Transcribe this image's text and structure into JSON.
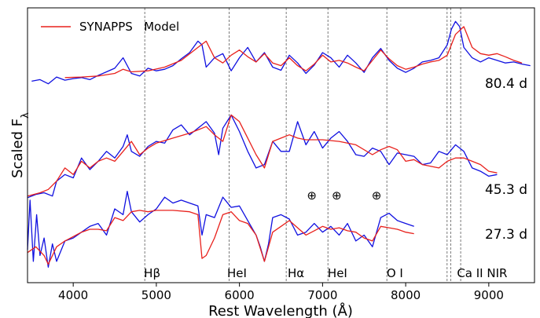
{
  "chart_data": {
    "type": "line",
    "xlabel": "Rest Wavelength (Å)",
    "ylabel": "Scaled F",
    "ylabel_subscript": "λ",
    "xlim": [
      3450,
      9550
    ],
    "ylim": [
      0,
      1
    ],
    "x_ticks": [
      4000,
      5000,
      6000,
      7000,
      8000,
      9000
    ],
    "legend": {
      "position": "top-left",
      "entries": [
        {
          "name": "SYNAPPS   Model",
          "color": "#e8211c"
        }
      ]
    },
    "series_colors": {
      "observed": "#1010e0",
      "model": "#e8211c"
    },
    "line_markers": [
      {
        "label": "Hβ",
        "x": 4861,
        "label_x": 4950
      },
      {
        "label": "HeI",
        "x": 5876,
        "label_x": 5970
      },
      {
        "label": "Hα",
        "x": 6563,
        "label_x": 6680
      },
      {
        "label": "HeI",
        "x": 7065,
        "label_x": 7180
      },
      {
        "label": "O I",
        "x": 7774,
        "label_x": 7870
      },
      {
        "label": "",
        "x": 8498
      },
      {
        "label": "",
        "x": 8542
      },
      {
        "label": "Ca II NIR",
        "x": 8662,
        "label_x": 8920
      }
    ],
    "telluric_markers": [
      {
        "symbol": "⊕",
        "x": 6870
      },
      {
        "symbol": "⊕",
        "x": 7170
      },
      {
        "symbol": "⊕",
        "x": 7650
      }
    ],
    "epochs": [
      {
        "label": "80.4 d",
        "observed": {
          "x": [
            3500,
            3600,
            3700,
            3800,
            3900,
            4000,
            4100,
            4200,
            4300,
            4400,
            4500,
            4600,
            4700,
            4800,
            4900,
            5000,
            5100,
            5200,
            5300,
            5400,
            5500,
            5550,
            5600,
            5700,
            5800,
            5900,
            6000,
            6100,
            6200,
            6300,
            6400,
            6500,
            6600,
            6700,
            6800,
            6900,
            7000,
            7100,
            7200,
            7300,
            7400,
            7500,
            7600,
            7700,
            7800,
            7900,
            8000,
            8100,
            8200,
            8300,
            8400,
            8500,
            8550,
            8600,
            8650,
            8700,
            8800,
            8900,
            9000,
            9100,
            9200,
            9300,
            9400,
            9500
          ],
          "y": [
            0.885,
            0.888,
            0.88,
            0.893,
            0.887,
            0.89,
            0.892,
            0.888,
            0.896,
            0.903,
            0.91,
            0.93,
            0.9,
            0.895,
            0.91,
            0.905,
            0.908,
            0.915,
            0.928,
            0.94,
            0.962,
            0.955,
            0.912,
            0.93,
            0.938,
            0.905,
            0.93,
            0.95,
            0.922,
            0.94,
            0.912,
            0.906,
            0.935,
            0.92,
            0.9,
            0.916,
            0.94,
            0.93,
            0.912,
            0.935,
            0.92,
            0.902,
            0.93,
            0.948,
            0.925,
            0.91,
            0.902,
            0.91,
            0.922,
            0.925,
            0.93,
            0.955,
            0.985,
            1.0,
            0.99,
            0.95,
            0.93,
            0.922,
            0.93,
            0.925,
            0.92,
            0.922,
            0.918,
            0.915
          ]
        },
        "model": {
          "x": [
            3900,
            4100,
            4300,
            4500,
            4600,
            4700,
            4900,
            5100,
            5300,
            5500,
            5600,
            5700,
            5800,
            5900,
            6000,
            6100,
            6200,
            6300,
            6400,
            6500,
            6600,
            6700,
            6800,
            6900,
            7000,
            7100,
            7200,
            7300,
            7400,
            7500,
            7600,
            7700,
            7800,
            7900,
            8000,
            8100,
            8200,
            8300,
            8400,
            8500,
            8600,
            8700,
            8800,
            8900,
            9000,
            9100,
            9200,
            9300,
            9400
          ],
          "y": [
            0.892,
            0.893,
            0.895,
            0.9,
            0.908,
            0.903,
            0.905,
            0.912,
            0.925,
            0.95,
            0.962,
            0.93,
            0.92,
            0.935,
            0.945,
            0.932,
            0.922,
            0.938,
            0.92,
            0.915,
            0.93,
            0.915,
            0.905,
            0.918,
            0.935,
            0.922,
            0.925,
            0.92,
            0.912,
            0.905,
            0.925,
            0.945,
            0.928,
            0.915,
            0.908,
            0.912,
            0.918,
            0.922,
            0.925,
            0.935,
            0.975,
            0.99,
            0.95,
            0.938,
            0.935,
            0.938,
            0.932,
            0.925,
            0.92
          ]
        }
      },
      {
        "label": "45.3 d",
        "observed": {
          "x": [
            3450,
            3550,
            3650,
            3750,
            3800,
            3900,
            4000,
            4100,
            4200,
            4300,
            4400,
            4500,
            4600,
            4650,
            4700,
            4800,
            4900,
            5000,
            5100,
            5200,
            5300,
            5400,
            5500,
            5600,
            5700,
            5750,
            5800,
            5900,
            6000,
            6100,
            6200,
            6300,
            6400,
            6500,
            6600,
            6700,
            6800,
            6900,
            7000,
            7100,
            7200,
            7300,
            7400,
            7500,
            7600,
            7700,
            7800,
            7900,
            8000,
            8100,
            8200,
            8300,
            8400,
            8500,
            8600,
            8700,
            8800,
            8900,
            9000,
            9100
          ],
          "y": [
            0.33,
            0.34,
            0.345,
            0.335,
            0.38,
            0.4,
            0.39,
            0.45,
            0.415,
            0.44,
            0.47,
            0.45,
            0.485,
            0.52,
            0.47,
            0.455,
            0.485,
            0.5,
            0.495,
            0.535,
            0.55,
            0.52,
            0.54,
            0.56,
            0.525,
            0.46,
            0.54,
            0.58,
            0.53,
            0.47,
            0.42,
            0.43,
            0.5,
            0.47,
            0.47,
            0.56,
            0.49,
            0.53,
            0.48,
            0.51,
            0.53,
            0.5,
            0.46,
            0.455,
            0.48,
            0.47,
            0.43,
            0.465,
            0.46,
            0.455,
            0.43,
            0.435,
            0.47,
            0.46,
            0.49,
            0.47,
            0.42,
            0.41,
            0.395,
            0.4
          ]
        },
        "model": {
          "x": [
            3450,
            3600,
            3700,
            3800,
            3900,
            4000,
            4100,
            4200,
            4300,
            4400,
            4500,
            4600,
            4700,
            4800,
            4900,
            5000,
            5200,
            5400,
            5500,
            5600,
            5700,
            5800,
            5900,
            6000,
            6100,
            6200,
            6300,
            6400,
            6500,
            6600,
            6700,
            6800,
            6900,
            7000,
            7200,
            7400,
            7600,
            7700,
            7800,
            7900,
            8000,
            8100,
            8200,
            8300,
            8400,
            8500,
            8600,
            8700,
            8800,
            8900,
            9000,
            9100
          ],
          "y": [
            0.335,
            0.345,
            0.355,
            0.38,
            0.42,
            0.4,
            0.44,
            0.42,
            0.44,
            0.45,
            0.44,
            0.47,
            0.5,
            0.46,
            0.48,
            0.495,
            0.51,
            0.525,
            0.535,
            0.545,
            0.52,
            0.5,
            0.58,
            0.56,
            0.51,
            0.46,
            0.42,
            0.5,
            0.51,
            0.52,
            0.51,
            0.505,
            0.505,
            0.505,
            0.5,
            0.49,
            0.46,
            0.475,
            0.485,
            0.475,
            0.44,
            0.445,
            0.43,
            0.425,
            0.42,
            0.44,
            0.45,
            0.45,
            0.44,
            0.43,
            0.41,
            0.405
          ]
        }
      },
      {
        "label": "27.3 d",
        "observed": {
          "x": [
            3450,
            3480,
            3520,
            3560,
            3600,
            3650,
            3700,
            3750,
            3800,
            3900,
            4000,
            4100,
            4200,
            4300,
            4400,
            4500,
            4600,
            4650,
            4700,
            4800,
            4900,
            5000,
            5100,
            5200,
            5300,
            5400,
            5500,
            5550,
            5600,
            5700,
            5800,
            5900,
            6000,
            6100,
            6200,
            6250,
            6300,
            6350,
            6400,
            6500,
            6600,
            6700,
            6800,
            6900,
            7000,
            7100,
            7200,
            7300,
            7400,
            7500,
            7600,
            7700,
            7800,
            7900,
            8000,
            8100
          ],
          "y": [
            0.1,
            0.27,
            0.06,
            0.22,
            0.08,
            0.14,
            0.04,
            0.12,
            0.06,
            0.13,
            0.14,
            0.16,
            0.18,
            0.19,
            0.15,
            0.24,
            0.22,
            0.3,
            0.23,
            0.195,
            0.22,
            0.24,
            0.28,
            0.26,
            0.27,
            0.26,
            0.25,
            0.15,
            0.22,
            0.21,
            0.28,
            0.245,
            0.25,
            0.2,
            0.15,
            0.11,
            0.06,
            0.12,
            0.21,
            0.22,
            0.205,
            0.15,
            0.16,
            0.19,
            0.16,
            0.18,
            0.15,
            0.19,
            0.13,
            0.15,
            0.11,
            0.21,
            0.225,
            0.2,
            0.19,
            0.18
          ]
        },
        "model": {
          "x": [
            3450,
            3550,
            3650,
            3700,
            3800,
            3900,
            4000,
            4100,
            4200,
            4300,
            4400,
            4500,
            4600,
            4700,
            4800,
            4900,
            5000,
            5200,
            5400,
            5500,
            5550,
            5600,
            5700,
            5800,
            5900,
            6000,
            6100,
            6200,
            6300,
            6400,
            6500,
            6600,
            6700,
            6800,
            6900,
            7000,
            7100,
            7200,
            7300,
            7400,
            7500,
            7600,
            7700,
            7800,
            7900,
            8000,
            8100
          ],
          "y": [
            0.09,
            0.11,
            0.08,
            0.05,
            0.11,
            0.13,
            0.145,
            0.16,
            0.17,
            0.17,
            0.165,
            0.21,
            0.2,
            0.23,
            0.235,
            0.23,
            0.235,
            0.235,
            0.23,
            0.22,
            0.07,
            0.08,
            0.14,
            0.22,
            0.23,
            0.2,
            0.19,
            0.15,
            0.06,
            0.16,
            0.18,
            0.2,
            0.175,
            0.15,
            0.165,
            0.18,
            0.17,
            0.175,
            0.165,
            0.16,
            0.14,
            0.13,
            0.18,
            0.175,
            0.17,
            0.16,
            0.155
          ]
        }
      }
    ]
  }
}
